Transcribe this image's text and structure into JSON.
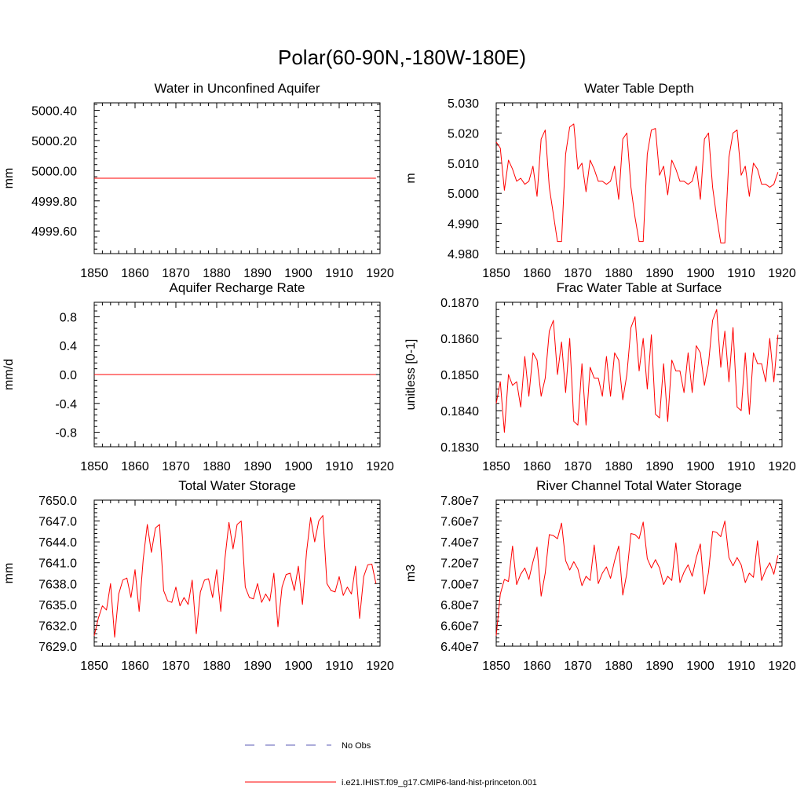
{
  "figure_title": "Polar(60-90N,-180W-180E)",
  "colors": {
    "series": "#ff0000",
    "no_obs": "#5a5ab4",
    "axes": "#000000"
  },
  "legend": [
    {
      "label": "No Obs",
      "style": "dashed",
      "color": "#5a5ab4"
    },
    {
      "label": "i.e21.IHIST.f09_g17.CMIP6-land-hist-princeton.001",
      "style": "solid",
      "color": "#ff0000"
    }
  ],
  "chart_data": [
    {
      "type": "line",
      "title": "Water in Unconfined Aquifer",
      "ylabel": "mm",
      "xlim": [
        1850,
        1920
      ],
      "ylim": [
        4999.45,
        5000.45
      ],
      "xticks": [
        1850,
        1860,
        1870,
        1880,
        1890,
        1900,
        1910,
        1920
      ],
      "yticks": [
        4999.6,
        4999.8,
        5000.0,
        5000.2,
        5000.4
      ],
      "ytick_labels": [
        "4999.60",
        "4999.80",
        "5000.00",
        "5000.20",
        "5000.40"
      ],
      "x_start": 1850,
      "x_step": 1,
      "values": [
        4999.95,
        4999.95,
        4999.95,
        4999.95,
        4999.95,
        4999.95,
        4999.95,
        4999.95,
        4999.95,
        4999.95,
        4999.95,
        4999.95,
        4999.95,
        4999.95,
        4999.95,
        4999.95,
        4999.95,
        4999.95,
        4999.95,
        4999.95,
        4999.95,
        4999.95,
        4999.95,
        4999.95,
        4999.95,
        4999.95,
        4999.95,
        4999.95,
        4999.95,
        4999.95,
        4999.95,
        4999.95,
        4999.95,
        4999.95,
        4999.95,
        4999.95,
        4999.95,
        4999.95,
        4999.95,
        4999.95,
        4999.95,
        4999.95,
        4999.95,
        4999.95,
        4999.95,
        4999.95,
        4999.95,
        4999.95,
        4999.95,
        4999.95,
        4999.95,
        4999.95,
        4999.95,
        4999.95,
        4999.95,
        4999.95,
        4999.95,
        4999.95,
        4999.95,
        4999.95,
        4999.95,
        4999.95,
        4999.95,
        4999.95,
        4999.95,
        4999.95,
        4999.95,
        4999.95,
        4999.95,
        4999.95
      ]
    },
    {
      "type": "line",
      "title": "Water Table Depth",
      "ylabel": "m",
      "xlim": [
        1850,
        1920
      ],
      "ylim": [
        4.98,
        5.03
      ],
      "xticks": [
        1850,
        1860,
        1870,
        1880,
        1890,
        1900,
        1910,
        1920
      ],
      "yticks": [
        4.98,
        4.99,
        5.0,
        5.01,
        5.02,
        5.03
      ],
      "ytick_labels": [
        "4.980",
        "4.990",
        "5.000",
        "5.010",
        "5.020",
        "5.030"
      ],
      "x_start": 1850,
      "x_step": 1,
      "values": [
        5.017,
        5.015,
        5.001,
        5.011,
        5.008,
        5.004,
        5.005,
        5.003,
        5.004,
        5.009,
        4.999,
        5.018,
        5.021,
        5.002,
        4.993,
        4.984,
        4.984,
        5.013,
        5.022,
        5.023,
        5.008,
        5.01,
        5.0005,
        5.011,
        5.008,
        5.004,
        5.004,
        5.003,
        5.004,
        5.009,
        4.998,
        5.018,
        5.02,
        5.002,
        4.992,
        4.984,
        4.984,
        5.013,
        5.021,
        5.0215,
        5.006,
        5.009,
        4.9995,
        5.011,
        5.008,
        5.004,
        5.004,
        5.003,
        5.004,
        5.009,
        4.998,
        5.018,
        5.02,
        5.002,
        4.992,
        4.9835,
        4.9835,
        5.012,
        5.02,
        5.021,
        5.006,
        5.009,
        4.999,
        5.01,
        5.008,
        5.003,
        5.003,
        5.002,
        5.003,
        5.007
      ]
    },
    {
      "type": "line",
      "title": "Aquifer Recharge Rate",
      "ylabel": "mm/d",
      "xlim": [
        1850,
        1920
      ],
      "ylim": [
        -1.0,
        1.0
      ],
      "xticks": [
        1850,
        1860,
        1870,
        1880,
        1890,
        1900,
        1910,
        1920
      ],
      "yticks": [
        -0.8,
        -0.4,
        0.0,
        0.4,
        0.8
      ],
      "ytick_labels": [
        "-0.8",
        "-0.4",
        "0.0",
        "0.4",
        "0.8"
      ],
      "x_start": 1850,
      "x_step": 1,
      "values": [
        0,
        0,
        0,
        0,
        0,
        0,
        0,
        0,
        0,
        0,
        0,
        0,
        0,
        0,
        0,
        0,
        0,
        0,
        0,
        0,
        0,
        0,
        0,
        0,
        0,
        0,
        0,
        0,
        0,
        0,
        0,
        0,
        0,
        0,
        0,
        0,
        0,
        0,
        0,
        0,
        0,
        0,
        0,
        0,
        0,
        0,
        0,
        0,
        0,
        0,
        0,
        0,
        0,
        0,
        0,
        0,
        0,
        0,
        0,
        0,
        0,
        0,
        0,
        0,
        0,
        0,
        0,
        0,
        0,
        0
      ]
    },
    {
      "type": "line",
      "title": "Frac Water Table at Surface",
      "ylabel": "unitless [0-1]",
      "xlim": [
        1850,
        1920
      ],
      "ylim": [
        0.183,
        0.187
      ],
      "xticks": [
        1850,
        1860,
        1870,
        1880,
        1890,
        1900,
        1910,
        1920
      ],
      "yticks": [
        0.183,
        0.184,
        0.185,
        0.186,
        0.187
      ],
      "ytick_labels": [
        "0.1830",
        "0.1840",
        "0.1850",
        "0.1860",
        "0.1870"
      ],
      "x_start": 1850,
      "x_step": 1,
      "values": [
        0.1842,
        0.1848,
        0.1834,
        0.185,
        0.1847,
        0.1848,
        0.1841,
        0.1855,
        0.1844,
        0.1856,
        0.1854,
        0.1844,
        0.1849,
        0.1862,
        0.1865,
        0.185,
        0.1859,
        0.1845,
        0.186,
        0.1837,
        0.1836,
        0.1853,
        0.1836,
        0.1852,
        0.1849,
        0.1849,
        0.1844,
        0.1855,
        0.1844,
        0.1856,
        0.1854,
        0.1843,
        0.185,
        0.1863,
        0.1866,
        0.1851,
        0.186,
        0.1846,
        0.1861,
        0.1839,
        0.1838,
        0.1853,
        0.1837,
        0.1854,
        0.1851,
        0.1851,
        0.1845,
        0.1856,
        0.1845,
        0.1858,
        0.1856,
        0.1847,
        0.1853,
        0.1865,
        0.1868,
        0.1852,
        0.1862,
        0.1848,
        0.1863,
        0.1841,
        0.184,
        0.1856,
        0.1839,
        0.1856,
        0.1853,
        0.1853,
        0.1848,
        0.186,
        0.1848,
        0.1861
      ]
    },
    {
      "type": "line",
      "title": "Total Water Storage",
      "ylabel": "mm",
      "xlim": [
        1850,
        1920
      ],
      "ylim": [
        7629.0,
        7650.0
      ],
      "xticks": [
        1850,
        1860,
        1870,
        1880,
        1890,
        1900,
        1910,
        1920
      ],
      "yticks": [
        7629.0,
        7632.0,
        7635.0,
        7638.0,
        7641.0,
        7644.0,
        7647.0,
        7650.0
      ],
      "ytick_labels": [
        "7629.0",
        "7632.0",
        "7635.0",
        "7638.0",
        "7641.0",
        "7644.0",
        "7647.0",
        "7650.0"
      ],
      "x_start": 1850,
      "x_step": 1,
      "values": [
        7630.5,
        7633.0,
        7634.8,
        7634.2,
        7638.0,
        7630.3,
        7636.5,
        7638.5,
        7638.8,
        7636.0,
        7640.0,
        7634.0,
        7641.5,
        7646.5,
        7642.5,
        7646.0,
        7646.5,
        7637.0,
        7635.5,
        7635.3,
        7637.5,
        7634.8,
        7636.0,
        7635.0,
        7638.5,
        7630.8,
        7636.8,
        7638.5,
        7638.7,
        7636.0,
        7640.0,
        7634.0,
        7641.5,
        7646.8,
        7643.0,
        7646.5,
        7647.0,
        7637.5,
        7636.0,
        7635.8,
        7638.0,
        7635.3,
        7636.5,
        7635.5,
        7639.5,
        7631.8,
        7637.5,
        7639.3,
        7639.5,
        7637.0,
        7640.5,
        7635.0,
        7642.5,
        7647.5,
        7644.0,
        7647.0,
        7647.8,
        7638.0,
        7637.0,
        7636.8,
        7639.0,
        7636.3,
        7637.5,
        7636.5,
        7640.5,
        7633.0,
        7639.0,
        7640.7,
        7640.8,
        7638.0
      ]
    },
    {
      "type": "line",
      "title": "River Channel Total Water Storage",
      "ylabel": "m3",
      "xlim": [
        1850,
        1920
      ],
      "ylim": [
        64000000,
        78000000
      ],
      "xticks": [
        1850,
        1860,
        1870,
        1880,
        1890,
        1900,
        1910,
        1920
      ],
      "yticks": [
        64000000,
        66000000,
        68000000,
        70000000,
        72000000,
        74000000,
        76000000,
        78000000
      ],
      "ytick_labels": [
        "6.40e7",
        "6.60e7",
        "6.80e7",
        "7.00e7",
        "7.20e7",
        "7.40e7",
        "7.60e7",
        "7.80e7"
      ],
      "x_start": 1850,
      "x_step": 1,
      "values": [
        65000000,
        69000000,
        70400000,
        70200000,
        73600000,
        69900000,
        70900000,
        71500000,
        70400000,
        72100000,
        73500000,
        68800000,
        71000000,
        74700000,
        74600000,
        74300000,
        75800000,
        72200000,
        71300000,
        72100000,
        71400000,
        69800000,
        70700000,
        70300000,
        73700000,
        70000000,
        71000000,
        71600000,
        70500000,
        72200000,
        73600000,
        68900000,
        71000000,
        74800000,
        74700000,
        74300000,
        75900000,
        72400000,
        71500000,
        72300000,
        71500000,
        69900000,
        70700000,
        70300000,
        73900000,
        70100000,
        71100000,
        71800000,
        70700000,
        72500000,
        73800000,
        69000000,
        71100000,
        75000000,
        74900000,
        74500000,
        76000000,
        72500000,
        71700000,
        72500000,
        71800000,
        70100000,
        71000000,
        70600000,
        74100000,
        70300000,
        71300000,
        72000000,
        70900000,
        72700000
      ]
    }
  ]
}
